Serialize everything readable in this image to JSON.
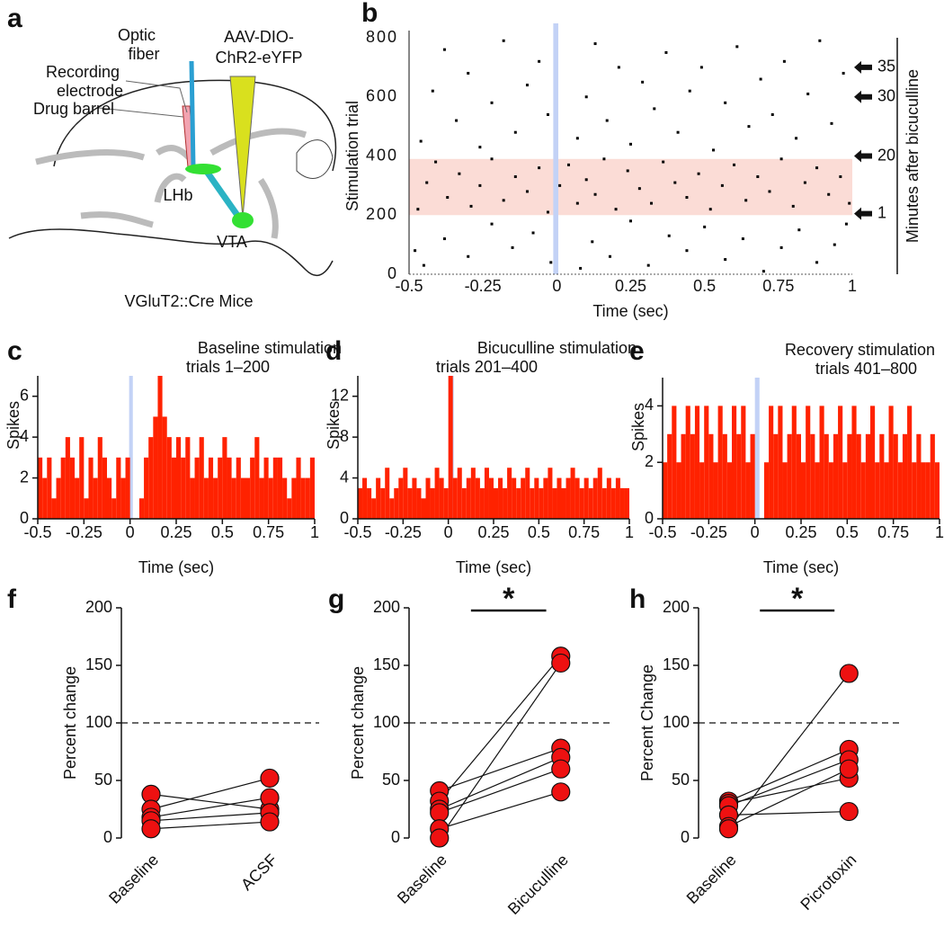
{
  "panel_labels": [
    "a",
    "b",
    "c",
    "d",
    "e",
    "f",
    "g",
    "h"
  ],
  "diagram": {
    "optic_fiber": [
      "Optic",
      "fiber"
    ],
    "recording_electrode": [
      "Recording",
      "electrode"
    ],
    "drug_barrel": "Drug barrel",
    "virus": [
      "AAV-DIO-",
      "ChR2-eYFP"
    ],
    "lhb": "LHb",
    "vta": "VTA",
    "mouse": "VGluT2::Cre Mice"
  },
  "chart_data": [
    {
      "type": "raster",
      "x_label": "Time (sec)",
      "y_label": "Stimulation trial",
      "side_label": "Minutes after bicuculline",
      "xlim": [
        -0.5,
        1
      ],
      "ylim": [
        0,
        800
      ],
      "xticks": [
        -0.5,
        -0.25,
        0,
        0.25,
        0.5,
        0.75,
        1
      ],
      "yticks": [
        0,
        200,
        400,
        600,
        800
      ],
      "color": "#000000",
      "band_color": "#fbdcd6",
      "highlight_band": [
        200,
        390
      ],
      "stimulus_color": "#c3d2f6",
      "stimulus_window": [
        -0.012,
        0.005
      ],
      "annotations": [
        {
          "value": 700,
          "label": "35"
        },
        {
          "value": 600,
          "label": "30"
        },
        {
          "value": 400,
          "label": "20"
        },
        {
          "value": 205,
          "label": "1"
        }
      ],
      "x": [
        -0.45,
        -0.38,
        -0.3,
        -0.22,
        -0.15,
        -0.08,
        -0.02,
        0.08,
        0.12,
        0.18,
        0.25,
        0.31,
        0.38,
        0.44,
        0.5,
        0.57,
        0.63,
        0.7,
        0.76,
        0.82,
        0.88,
        0.94,
        0.98,
        -0.48,
        -0.47,
        -0.44,
        -0.41,
        -0.37,
        -0.33,
        -0.29,
        -0.26,
        -0.22,
        -0.18,
        -0.14,
        -0.1,
        -0.06,
        -0.03,
        0.01,
        0.04,
        0.07,
        0.1,
        0.13,
        0.16,
        0.2,
        0.24,
        0.28,
        0.32,
        0.36,
        0.4,
        0.44,
        0.48,
        0.52,
        0.56,
        0.6,
        0.64,
        0.68,
        0.72,
        0.76,
        0.8,
        0.84,
        0.88,
        0.92,
        0.96,
        0.99,
        -0.46,
        -0.42,
        -0.38,
        -0.34,
        -0.3,
        -0.26,
        -0.22,
        -0.18,
        -0.14,
        -0.1,
        -0.06,
        -0.03,
        0.07,
        0.1,
        0.13,
        0.17,
        0.21,
        0.25,
        0.29,
        0.33,
        0.37,
        0.41,
        0.45,
        0.49,
        0.53,
        0.57,
        0.61,
        0.65,
        0.69,
        0.73,
        0.77,
        0.81,
        0.85,
        0.89,
        0.93,
        0.97
      ],
      "y": [
        30,
        120,
        60,
        170,
        90,
        140,
        40,
        20,
        110,
        60,
        180,
        30,
        130,
        80,
        160,
        50,
        120,
        10,
        90,
        150,
        40,
        100,
        170,
        80,
        220,
        310,
        380,
        260,
        340,
        230,
        300,
        390,
        250,
        330,
        280,
        360,
        210,
        300,
        370,
        240,
        320,
        270,
        390,
        220,
        350,
        290,
        240,
        380,
        310,
        260,
        340,
        220,
        300,
        370,
        250,
        330,
        280,
        390,
        230,
        310,
        360,
        270,
        330,
        240,
        450,
        620,
        760,
        520,
        680,
        430,
        580,
        790,
        480,
        640,
        720,
        540,
        460,
        600,
        780,
        520,
        700,
        440,
        650,
        560,
        750,
        480,
        620,
        700,
        420,
        580,
        770,
        500,
        660,
        540,
        720,
        460,
        610,
        790,
        510,
        680
      ]
    },
    {
      "type": "histogram",
      "title": "Baseline stimulation",
      "subtitle": "trials 1–200",
      "x_label": "Time (sec)",
      "y_label": "Spikes",
      "xlim": [
        -0.5,
        1
      ],
      "ylim": [
        0,
        7
      ],
      "xticks": [
        -0.5,
        -0.25,
        0,
        0.25,
        0.5,
        0.75,
        1
      ],
      "yticks": [
        0,
        2,
        4,
        6
      ],
      "color": "#ff2200",
      "stimulus_color": "#c3d2f6",
      "stimulus_window": [
        -0.005,
        0.015
      ],
      "bins": [
        -0.5,
        -0.475,
        -0.45,
        -0.425,
        -0.4,
        -0.375,
        -0.35,
        -0.325,
        -0.3,
        -0.275,
        -0.25,
        -0.225,
        -0.2,
        -0.175,
        -0.15,
        -0.125,
        -0.1,
        -0.075,
        -0.05,
        -0.025,
        0,
        0.025,
        0.05,
        0.075,
        0.1,
        0.125,
        0.15,
        0.175,
        0.2,
        0.225,
        0.25,
        0.275,
        0.3,
        0.325,
        0.35,
        0.375,
        0.4,
        0.425,
        0.45,
        0.475,
        0.5,
        0.525,
        0.55,
        0.575,
        0.6,
        0.625,
        0.65,
        0.675,
        0.7,
        0.725,
        0.75,
        0.775,
        0.8,
        0.825,
        0.85,
        0.875,
        0.9,
        0.925,
        0.95,
        0.975,
        1
      ],
      "values": [
        3,
        2,
        3,
        1,
        2,
        3,
        4,
        3,
        2,
        4,
        1,
        3,
        2,
        4,
        3,
        2,
        1,
        3,
        2,
        3,
        0,
        0,
        1,
        3,
        4,
        5,
        7,
        5,
        4,
        3,
        4,
        3,
        4,
        2,
        3,
        4,
        2,
        3,
        2,
        3,
        4,
        3,
        2,
        3,
        2,
        2,
        3,
        4,
        2,
        3,
        2,
        3,
        3,
        2,
        1,
        2,
        3,
        2,
        2,
        3
      ]
    },
    {
      "type": "histogram",
      "title": "Bicuculline stimulation",
      "subtitle": "trials 201–400",
      "x_label": "Time (sec)",
      "y_label": "Spikes",
      "xlim": [
        -0.5,
        1
      ],
      "ylim": [
        0,
        14
      ],
      "xticks": [
        -0.5,
        -0.25,
        0,
        0.25,
        0.5,
        0.75,
        1
      ],
      "yticks": [
        0,
        4,
        8,
        12
      ],
      "color": "#ff2200",
      "stimulus_color": "#c3d2f6",
      "stimulus_window": [
        0.01,
        0.03
      ],
      "bins": [
        -0.5,
        -0.475,
        -0.45,
        -0.425,
        -0.4,
        -0.375,
        -0.35,
        -0.325,
        -0.3,
        -0.275,
        -0.25,
        -0.225,
        -0.2,
        -0.175,
        -0.15,
        -0.125,
        -0.1,
        -0.075,
        -0.05,
        -0.025,
        0,
        0.025,
        0.05,
        0.075,
        0.1,
        0.125,
        0.15,
        0.175,
        0.2,
        0.225,
        0.25,
        0.275,
        0.3,
        0.325,
        0.35,
        0.375,
        0.4,
        0.425,
        0.45,
        0.475,
        0.5,
        0.525,
        0.55,
        0.575,
        0.6,
        0.625,
        0.65,
        0.675,
        0.7,
        0.725,
        0.75,
        0.775,
        0.8,
        0.825,
        0.85,
        0.875,
        0.9,
        0.925,
        0.95,
        0.975,
        1
      ],
      "values": [
        3,
        4,
        3,
        2,
        4,
        3,
        5,
        2,
        3,
        4,
        5,
        3,
        4,
        3,
        2,
        4,
        3,
        5,
        4,
        3,
        14,
        4,
        5,
        3,
        4,
        5,
        4,
        3,
        5,
        4,
        3,
        4,
        3,
        5,
        4,
        3,
        4,
        5,
        3,
        4,
        3,
        4,
        5,
        3,
        4,
        3,
        4,
        5,
        4,
        3,
        4,
        3,
        4,
        5,
        3,
        4,
        3,
        4,
        3,
        3
      ]
    },
    {
      "type": "histogram",
      "title": "Recovery stimulation",
      "subtitle": "trials 401–800",
      "x_label": "Time (sec)",
      "y_label": "Spikes",
      "xlim": [
        -0.5,
        1
      ],
      "ylim": [
        0,
        5
      ],
      "xticks": [
        -0.5,
        -0.25,
        0,
        0.25,
        0.5,
        0.75,
        1
      ],
      "yticks": [
        0,
        2,
        4
      ],
      "color": "#ff2200",
      "stimulus_color": "#c3d2f6",
      "stimulus_window": [
        0,
        0.025
      ],
      "bins": [
        -0.5,
        -0.475,
        -0.45,
        -0.425,
        -0.4,
        -0.375,
        -0.35,
        -0.325,
        -0.3,
        -0.275,
        -0.25,
        -0.225,
        -0.2,
        -0.175,
        -0.15,
        -0.125,
        -0.1,
        -0.075,
        -0.05,
        -0.025,
        0,
        0.025,
        0.05,
        0.075,
        0.1,
        0.125,
        0.15,
        0.175,
        0.2,
        0.225,
        0.25,
        0.275,
        0.3,
        0.325,
        0.35,
        0.375,
        0.4,
        0.425,
        0.45,
        0.475,
        0.5,
        0.525,
        0.55,
        0.575,
        0.6,
        0.625,
        0.65,
        0.675,
        0.7,
        0.725,
        0.75,
        0.775,
        0.8,
        0.825,
        0.85,
        0.875,
        0.9,
        0.925,
        0.95,
        0.975,
        1
      ],
      "values": [
        2,
        3,
        4,
        2,
        3,
        4,
        3,
        4,
        2,
        4,
        3,
        2,
        4,
        3,
        2,
        4,
        3,
        4,
        2,
        3,
        0,
        0,
        2,
        4,
        3,
        4,
        2,
        3,
        4,
        3,
        2,
        4,
        3,
        2,
        4,
        3,
        2,
        3,
        4,
        2,
        3,
        4,
        3,
        2,
        3,
        4,
        2,
        3,
        2,
        4,
        3,
        2,
        3,
        4,
        2,
        3,
        2,
        2,
        3,
        2
      ]
    },
    {
      "type": "paired",
      "y_label": "Percent change",
      "categories": [
        "Baseline",
        "ACSF"
      ],
      "ylim": [
        0,
        200
      ],
      "yticks": [
        0,
        50,
        100,
        150,
        200
      ],
      "reference_line": 100,
      "color": "#ee1111",
      "series": [
        {
          "values": [
            38,
            25
          ]
        },
        {
          "values": [
            25,
            52
          ]
        },
        {
          "values": [
            18,
            35
          ]
        },
        {
          "values": [
            15,
            22
          ]
        },
        {
          "values": [
            8,
            14
          ]
        }
      ]
    },
    {
      "type": "paired",
      "y_label": "Percent change",
      "categories": [
        "Baseline",
        "Bicuculline"
      ],
      "ylim": [
        0,
        200
      ],
      "yticks": [
        0,
        50,
        100,
        150,
        200
      ],
      "reference_line": 100,
      "color": "#ee1111",
      "significance": "*",
      "series": [
        {
          "values": [
            41,
            78
          ]
        },
        {
          "values": [
            32,
            158
          ]
        },
        {
          "values": [
            25,
            70
          ]
        },
        {
          "values": [
            22,
            60
          ]
        },
        {
          "values": [
            8,
            40
          ]
        },
        {
          "values": [
            0,
            152
          ]
        }
      ]
    },
    {
      "type": "paired",
      "y_label": "Percent Change",
      "categories": [
        "Baseline",
        "Picrotoxin"
      ],
      "ylim": [
        0,
        200
      ],
      "yticks": [
        0,
        50,
        100,
        150,
        200
      ],
      "reference_line": 100,
      "color": "#ee1111",
      "significance": "*",
      "series": [
        {
          "values": [
            32,
            77
          ]
        },
        {
          "values": [
            30,
            52
          ]
        },
        {
          "values": [
            28,
            68
          ]
        },
        {
          "values": [
            20,
            23
          ]
        },
        {
          "values": [
            10,
            60
          ]
        },
        {
          "values": [
            8,
            143
          ]
        }
      ]
    }
  ]
}
